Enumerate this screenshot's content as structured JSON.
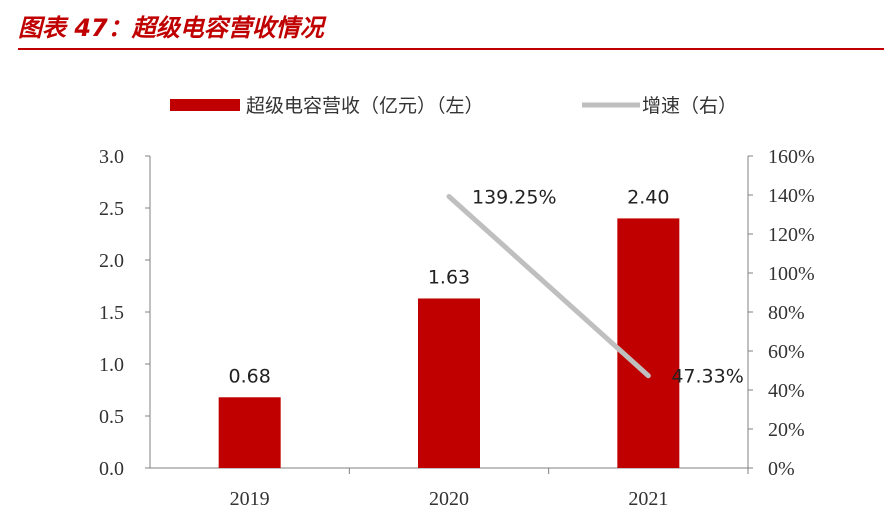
{
  "figure_title": "图表 47：超级电容营收情况",
  "colors": {
    "bar": "#c00000",
    "line": "#bfbfbf",
    "accent": "#c00000",
    "axis": "#808080",
    "text": "#333333"
  },
  "chart_data": {
    "type": "bar",
    "categories": [
      "2019",
      "2020",
      "2021"
    ],
    "series": [
      {
        "name": "超级电容营收（亿元）（左）",
        "type": "bar",
        "axis": "left",
        "values": [
          0.68,
          1.63,
          2.4
        ],
        "labels": [
          "0.68",
          "1.63",
          "2.40"
        ]
      },
      {
        "name": "增速（右）",
        "type": "line",
        "axis": "right",
        "values": [
          null,
          139.25,
          47.33
        ],
        "labels": [
          "",
          "139.25%",
          "47.33%"
        ]
      }
    ],
    "y_left": {
      "lim": [
        0,
        3.0
      ],
      "ticks": [
        "0.0",
        "0.5",
        "1.0",
        "1.5",
        "2.0",
        "2.5",
        "3.0"
      ]
    },
    "y_right": {
      "lim": [
        0,
        160
      ],
      "ticks": [
        "0%",
        "20%",
        "40%",
        "60%",
        "80%",
        "100%",
        "120%",
        "140%",
        "160%"
      ]
    },
    "legend": "top",
    "grid": false
  }
}
